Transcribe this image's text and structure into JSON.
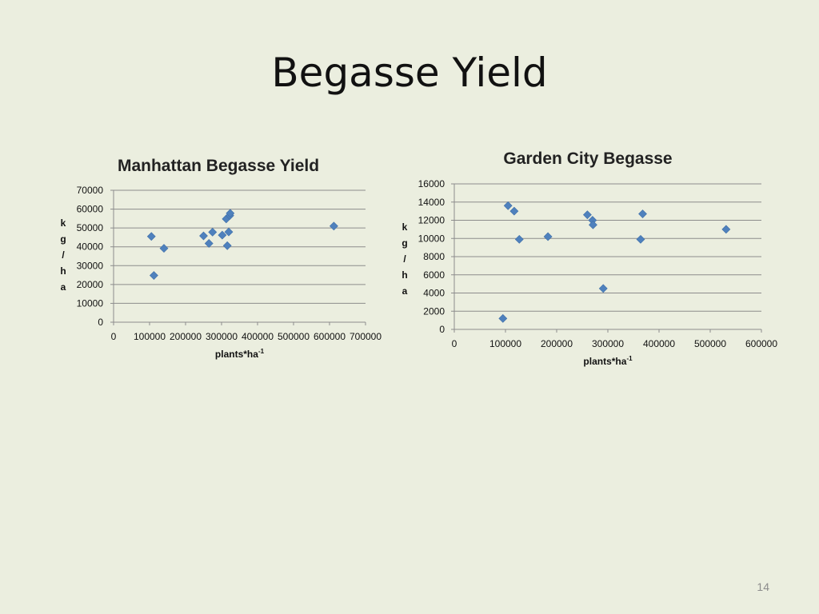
{
  "slide": {
    "title": "Begasse Yield",
    "page_number": "14"
  },
  "colors": {
    "background": "#ebeedf",
    "marker": "#4f81bd",
    "gridline": "#8c8c8c"
  },
  "chart_data": [
    {
      "type": "scatter",
      "title": "Manhattan Begasse Yield",
      "xlabel": "plants*ha",
      "xlabel_sup": "-1",
      "ylabel": "kg/ha",
      "xlim": [
        0,
        700000
      ],
      "ylim": [
        0,
        70000
      ],
      "xticks": [
        "0",
        "100000",
        "200000",
        "300000",
        "400000",
        "500000",
        "600000",
        "700000"
      ],
      "yticks": [
        "0",
        "10000",
        "20000",
        "30000",
        "40000",
        "50000",
        "60000",
        "70000"
      ],
      "grid": true,
      "series": [
        {
          "x": [
            105000,
            112000,
            140000,
            250000,
            265000,
            275000,
            302000,
            313000,
            316000,
            320000,
            323000,
            324000,
            612000
          ],
          "y": [
            45500,
            24800,
            39200,
            45800,
            41800,
            47800,
            46200,
            54800,
            40600,
            47900,
            56600,
            57800,
            51000
          ]
        }
      ]
    },
    {
      "type": "scatter",
      "title": "Garden City Begasse",
      "xlabel": "plants*ha",
      "xlabel_sup": "-1",
      "ylabel": "kg/ha",
      "xlim": [
        0,
        600000
      ],
      "ylim": [
        0,
        16000
      ],
      "xticks": [
        "0",
        "100000",
        "200000",
        "300000",
        "400000",
        "500000",
        "600000"
      ],
      "yticks": [
        "0",
        "2000",
        "4000",
        "6000",
        "8000",
        "10000",
        "12000",
        "14000",
        "16000"
      ],
      "grid": true,
      "series": [
        {
          "x": [
            95000,
            105000,
            117000,
            127000,
            183000,
            260000,
            270000,
            271000,
            291000,
            364000,
            368000,
            531000
          ],
          "y": [
            1200,
            13600,
            13000,
            9900,
            10200,
            12600,
            12000,
            11500,
            4500,
            9900,
            12700,
            11000
          ]
        }
      ]
    }
  ]
}
